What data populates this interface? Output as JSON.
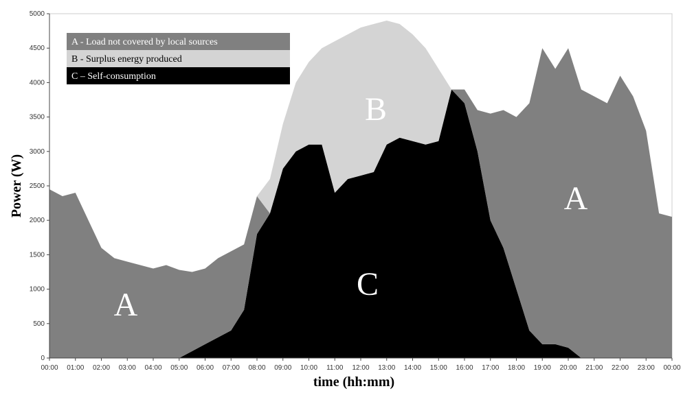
{
  "chart_data": {
    "type": "stacked-area",
    "x_label": "time (hh:mm)",
    "y_label": "Power (W)",
    "x": [
      0,
      0.5,
      1,
      1.5,
      2,
      2.5,
      3,
      3.5,
      4,
      4.5,
      5,
      5.5,
      6,
      6.5,
      7,
      7.5,
      8,
      8.5,
      9,
      9.5,
      10,
      10.5,
      11,
      11.5,
      12,
      12.5,
      13,
      13.5,
      14,
      14.5,
      15,
      15.5,
      16,
      16.5,
      17,
      17.5,
      18,
      18.5,
      19,
      19.5,
      20,
      20.5,
      21,
      21.5,
      22,
      22.5,
      23,
      23.5,
      24
    ],
    "series": [
      {
        "name": "C – Self-consumption",
        "color": "#000000",
        "values": [
          0,
          0,
          0,
          0,
          0,
          0,
          0,
          0,
          0,
          0,
          0,
          100,
          200,
          300,
          400,
          700,
          1800,
          2100,
          2750,
          3000,
          3100,
          3100,
          2400,
          2600,
          2650,
          2700,
          3100,
          3200,
          3150,
          3100,
          3150,
          3900,
          3700,
          3000,
          2000,
          1600,
          1000,
          400,
          200,
          200,
          150,
          0,
          0,
          0,
          0,
          0,
          0,
          0,
          0
        ]
      },
      {
        "name": "A - Load not covered by local sources",
        "color": "#808080",
        "values": [
          2450,
          2350,
          2400,
          2000,
          1600,
          1450,
          1400,
          1350,
          1300,
          1350,
          1280,
          1150,
          1100,
          1150,
          1150,
          950,
          550,
          0,
          0,
          0,
          0,
          0,
          0,
          0,
          0,
          0,
          0,
          0,
          0,
          0,
          0,
          0,
          200,
          600,
          1550,
          2000,
          2500,
          3300,
          4300,
          4000,
          4350,
          3900,
          3800,
          3700,
          4100,
          3800,
          3300,
          2100,
          2050
        ]
      },
      {
        "name": "B - Surplus energy produced",
        "color": "#d4d4d4",
        "values": [
          0,
          0,
          0,
          0,
          0,
          0,
          0,
          0,
          0,
          0,
          0,
          0,
          0,
          0,
          0,
          0,
          0,
          500,
          650,
          1000,
          1200,
          1400,
          2200,
          2100,
          2150,
          2150,
          1800,
          1650,
          1550,
          1400,
          1050,
          0,
          0,
          0,
          0,
          0,
          0,
          0,
          0,
          0,
          0,
          0,
          0,
          0,
          0,
          0,
          0,
          0,
          0
        ]
      }
    ],
    "legend_order": [
      1,
      2,
      0
    ],
    "annotations": [
      "A",
      "B",
      "C",
      "A"
    ],
    "xlim": [
      0,
      24
    ],
    "xticks": [
      {
        "value": 0,
        "label": "00:00"
      },
      {
        "value": 1,
        "label": "01:00"
      },
      {
        "value": 2,
        "label": "02:00"
      },
      {
        "value": 3,
        "label": "03:00"
      },
      {
        "value": 4,
        "label": "04:00"
      },
      {
        "value": 5,
        "label": "05:00"
      },
      {
        "value": 6,
        "label": "06:00"
      },
      {
        "value": 7,
        "label": "07:00"
      },
      {
        "value": 8,
        "label": "08:00"
      },
      {
        "value": 9,
        "label": "09:00"
      },
      {
        "value": 10,
        "label": "10:00"
      },
      {
        "value": 11,
        "label": "11:00"
      },
      {
        "value": 12,
        "label": "12:00"
      },
      {
        "value": 13,
        "label": "13:00"
      },
      {
        "value": 14,
        "label": "14:00"
      },
      {
        "value": 15,
        "label": "15:00"
      },
      {
        "value": 16,
        "label": "16:00"
      },
      {
        "value": 17,
        "label": "17:00"
      },
      {
        "value": 18,
        "label": "18:00"
      },
      {
        "value": 19,
        "label": "19:00"
      },
      {
        "value": 20,
        "label": "20:00"
      },
      {
        "value": 21,
        "label": "21:00"
      },
      {
        "value": 22,
        "label": "22:00"
      },
      {
        "value": 23,
        "label": "23:00"
      },
      {
        "value": 24,
        "label": "00:00"
      }
    ],
    "ylim": [
      0,
      5000
    ],
    "yticks": [
      0,
      500,
      1000,
      1500,
      2000,
      2500,
      3000,
      3500,
      4000,
      4500,
      5000
    ]
  }
}
